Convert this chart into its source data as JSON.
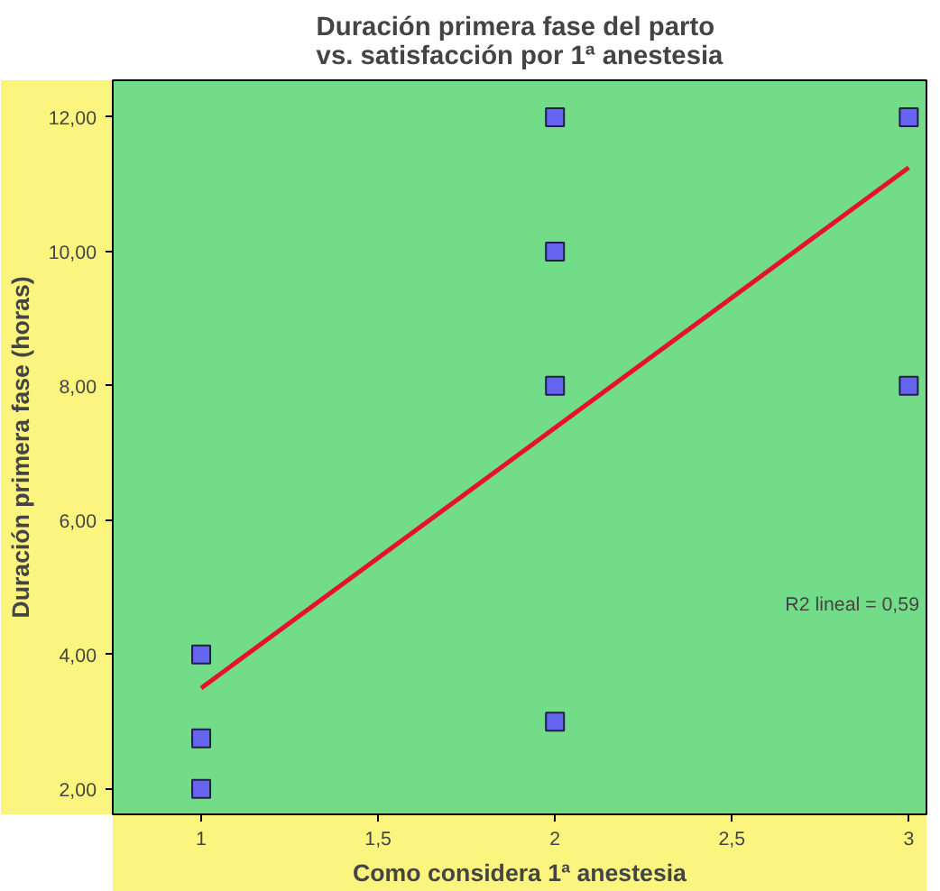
{
  "chart_data": {
    "type": "scatter",
    "title": "Duración primera fase del parto\nvs. satisfacción por 1ª anestesia",
    "xlabel": "Como considera 1ª anestesia",
    "ylabel": "Duración primera fase (horas)",
    "xlim": [
      0.75,
      3.05
    ],
    "ylim": [
      1.62,
      12.55
    ],
    "xticks": [
      1,
      {
        "value": 1.5,
        "label": "1,5"
      },
      2,
      {
        "value": 2.5,
        "label": "2,5"
      },
      3
    ],
    "yticks": [
      {
        "value": 2,
        "label": "2,00"
      },
      {
        "value": 4,
        "label": "4,00"
      },
      {
        "value": 6,
        "label": "6,00"
      },
      {
        "value": 8,
        "label": "8,00"
      },
      {
        "value": 10,
        "label": "10,00"
      },
      {
        "value": 12,
        "label": "12,00"
      }
    ],
    "grid": false,
    "marker": "square",
    "series": [
      {
        "color": "#6464f0",
        "x": [
          1,
          1,
          1,
          2,
          2,
          2,
          2,
          3,
          3
        ],
        "values": [
          4,
          2.75,
          2,
          12,
          10,
          8,
          3,
          12,
          8
        ]
      },
      {
        "type": "line",
        "color": "#e8102a",
        "line_style": "solid",
        "marker": "none",
        "x": [
          1,
          3
        ],
        "values": [
          3.5,
          11.25
        ]
      }
    ],
    "annotations": [
      "R2 lineal = 0,59"
    ]
  }
}
